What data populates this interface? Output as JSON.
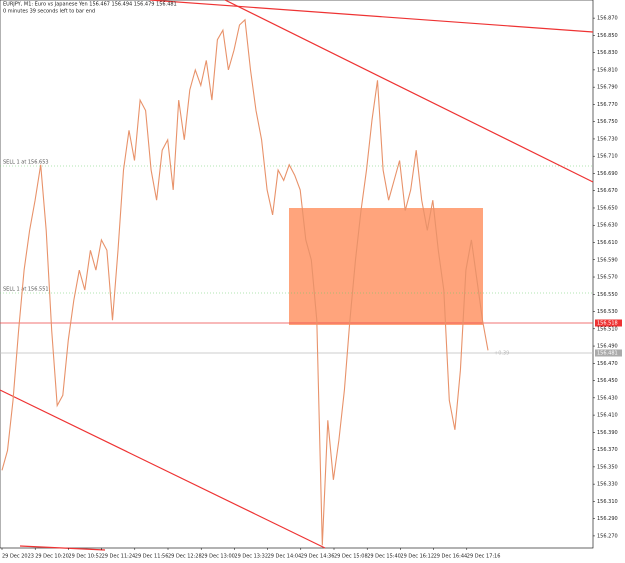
{
  "chart_data": {
    "type": "line",
    "header": "EURJPY, M1: Euro vs Japanese Yen 156.467 156.494 156.479 156.481",
    "countdown": "0 minutes 39 seconds left to bar end",
    "annotations": [
      "SELL 1 at 156.653",
      "SELL 1 at 156.551",
      "+0.39"
    ],
    "price_labels": [
      "156.518",
      "156.481"
    ],
    "xtick_labels": [
      "29 Dec 2023",
      "29 Dec 10:20",
      "29 Dec 10:52",
      "29 Dec 11:24",
      "29 Dec 11:56",
      "29 Dec 12:28",
      "29 Dec 13:00",
      "29 Dec 13:32",
      "29 Dec 14:04",
      "29 Dec 14:36",
      "29 Dec 15:08",
      "29 Dec 15:40",
      "29 Dec 16:12",
      "29 Dec 16:44",
      "29 Dec 17:16"
    ],
    "series": [
      {
        "name": "EURJPY",
        "color": "#e8926a",
        "values": [
          156.346,
          156.369,
          156.427,
          156.508,
          156.578,
          156.624,
          156.659,
          156.7,
          156.624,
          156.508,
          156.421,
          156.433,
          156.497,
          156.543,
          156.578,
          156.555,
          156.601,
          156.578,
          156.613,
          156.601,
          156.52,
          156.601,
          156.694,
          156.74,
          156.705,
          156.775,
          156.763,
          156.694,
          156.659,
          156.717,
          156.729,
          156.671,
          156.775,
          156.729,
          156.787,
          156.81,
          156.792,
          156.821,
          156.775,
          156.845,
          156.856,
          156.81,
          156.833,
          156.862,
          156.868,
          156.81,
          156.763,
          156.729,
          156.671,
          156.642,
          156.694,
          156.682,
          156.7,
          156.688,
          156.671,
          156.613,
          156.59,
          156.52,
          156.259,
          156.404,
          156.335,
          156.381,
          156.439,
          156.52,
          156.59,
          156.647,
          156.694,
          156.752,
          156.798,
          156.694,
          156.659,
          156.682,
          156.705,
          156.647,
          156.671,
          156.717,
          156.659,
          156.624,
          156.659,
          156.601,
          156.555,
          156.427,
          156.393,
          156.462,
          156.578,
          156.613,
          156.566,
          156.52,
          156.485
        ]
      }
    ],
    "ylim": [
      156.256,
      156.891
    ],
    "yticks": [
      {
        "value": 156.27,
        "label": "156.270"
      },
      {
        "value": 156.29,
        "label": "156.290"
      },
      {
        "value": 156.31,
        "label": "156.310"
      },
      {
        "value": 156.33,
        "label": "156.330"
      },
      {
        "value": 156.35,
        "label": "156.350"
      },
      {
        "value": 156.37,
        "label": "156.370"
      },
      {
        "value": 156.39,
        "label": "156.390"
      },
      {
        "value": 156.41,
        "label": "156.410"
      },
      {
        "value": 156.43,
        "label": "156.430"
      },
      {
        "value": 156.45,
        "label": "156.450"
      },
      {
        "value": 156.47,
        "label": "156.470"
      },
      {
        "value": 156.49,
        "label": "156.490"
      },
      {
        "value": 156.51,
        "label": "156.510"
      },
      {
        "value": 156.53,
        "label": "156.530"
      },
      {
        "value": 156.55,
        "label": "156.550"
      },
      {
        "value": 156.57,
        "label": "156.570"
      },
      {
        "value": 156.59,
        "label": "156.590"
      },
      {
        "value": 156.61,
        "label": "156.610"
      },
      {
        "value": 156.63,
        "label": "156.630"
      },
      {
        "value": 156.65,
        "label": "156.650"
      },
      {
        "value": 156.67,
        "label": "156.670"
      },
      {
        "value": 156.69,
        "label": "156.690"
      },
      {
        "value": 156.71,
        "label": "156.710"
      },
      {
        "value": 156.73,
        "label": "156.730"
      },
      {
        "value": 156.75,
        "label": "156.750"
      },
      {
        "value": 156.77,
        "label": "156.770"
      },
      {
        "value": 156.79,
        "label": "156.790"
      },
      {
        "value": 156.81,
        "label": "156.810"
      },
      {
        "value": 156.83,
        "label": "156.830"
      },
      {
        "value": 156.85,
        "label": "156.850"
      },
      {
        "value": 156.87,
        "label": "156.870"
      }
    ]
  }
}
